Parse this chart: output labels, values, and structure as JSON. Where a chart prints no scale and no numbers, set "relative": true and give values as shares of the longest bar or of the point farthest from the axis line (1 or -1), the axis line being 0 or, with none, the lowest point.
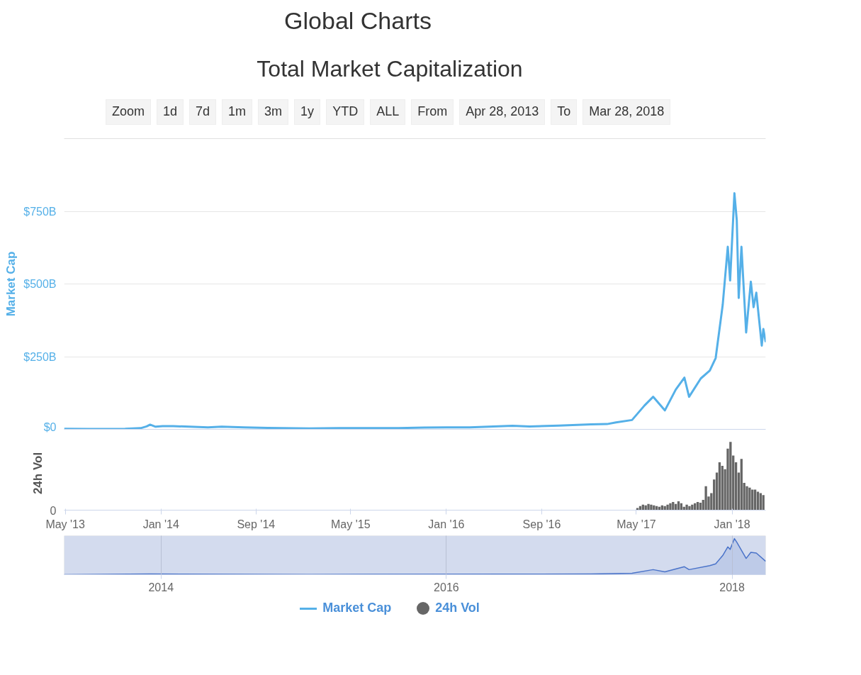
{
  "chart_data": [
    {
      "type": "line",
      "title": "Global Charts",
      "subtitle": "Total Market Capitalization",
      "ylabel": "Market Cap",
      "annotations": [
        "Zoom",
        "1d",
        "7d",
        "1m",
        "3m",
        "1y",
        "YTD",
        "ALL",
        "From",
        "Apr 28, 2013",
        "To",
        "Mar 28, 2018"
      ],
      "series": [
        {
          "name": "Market Cap",
          "color": "#55b0e8",
          "x": [
            "2013-04-28",
            "2013-07-01",
            "2013-10-01",
            "2013-11-10",
            "2013-11-25",
            "2013-12-04",
            "2013-12-18",
            "2014-01-05",
            "2014-02-01",
            "2014-03-15",
            "2014-05-01",
            "2014-06-05",
            "2014-08-01",
            "2014-10-01",
            "2015-01-15",
            "2015-04-01",
            "2015-07-01",
            "2015-09-01",
            "2015-11-05",
            "2016-01-01",
            "2016-03-01",
            "2016-06-18",
            "2016-08-01",
            "2016-10-15",
            "2017-01-05",
            "2017-02-15",
            "2017-03-10",
            "2017-04-20",
            "2017-05-22",
            "2017-06-13",
            "2017-07-13",
            "2017-08-10",
            "2017-09-01",
            "2017-09-13",
            "2017-10-13",
            "2017-11-05",
            "2017-11-20",
            "2017-12-08",
            "2017-12-21",
            "2017-12-27",
            "2018-01-07",
            "2018-01-13",
            "2018-01-18",
            "2018-01-25",
            "2018-02-06",
            "2018-02-18",
            "2018-02-25",
            "2018-03-04",
            "2018-03-18",
            "2018-03-22",
            "2018-03-28"
          ],
          "values": [
            2,
            1,
            2,
            4,
            10,
            16,
            9,
            11,
            11,
            9,
            7,
            9,
            7,
            5,
            3,
            4,
            4,
            4,
            6,
            7,
            7,
            12,
            10,
            13,
            17,
            18,
            24,
            32,
            82,
            112,
            65,
            137,
            178,
            112,
            175,
            202,
            245,
            428,
            628,
            512,
            812,
            720,
            452,
            628,
            333,
            508,
            420,
            470,
            288,
            345,
            300
          ]
        }
      ],
      "xlim": [
        "2013-04-28",
        "2018-03-28"
      ],
      "ylim": [
        0,
        1000
      ],
      "yticks": [
        {
          "value": 0,
          "label": "$0"
        },
        {
          "value": 250,
          "label": "$250B"
        },
        {
          "value": 500,
          "label": "$500B"
        },
        {
          "value": 750,
          "label": "$750B"
        }
      ],
      "tick_labels": "y",
      "grid": "y",
      "legend": "bottom"
    },
    {
      "type": "bar",
      "ylabel": "24h Vol",
      "relative": true,
      "annotations": [
        "0"
      ],
      "legend": "bottom",
      "xlim": [
        "2013-04-28",
        "2018-03-28"
      ],
      "xticks": [
        {
          "value": "2013-05-01",
          "label": "May '13"
        },
        {
          "value": "2014-01-01",
          "label": "Jan '14"
        },
        {
          "value": "2014-09-01",
          "label": "Sep '14"
        },
        {
          "value": "2015-05-01",
          "label": "May '15"
        },
        {
          "value": "2016-01-01",
          "label": "Jan '16"
        },
        {
          "value": "2016-09-01",
          "label": "Sep '16"
        },
        {
          "value": "2017-05-01",
          "label": "May '17"
        },
        {
          "value": "2018-01-01",
          "label": "Jan '18"
        }
      ],
      "series": [
        {
          "name": "24h Vol",
          "color": "#666666",
          "x": [
            "2017-05-04",
            "2017-05-11",
            "2017-05-18",
            "2017-05-25",
            "2017-06-01",
            "2017-06-08",
            "2017-06-15",
            "2017-06-22",
            "2017-06-29",
            "2017-07-06",
            "2017-07-13",
            "2017-07-20",
            "2017-07-27",
            "2017-08-03",
            "2017-08-10",
            "2017-08-17",
            "2017-08-24",
            "2017-08-31",
            "2017-09-07",
            "2017-09-14",
            "2017-09-21",
            "2017-09-28",
            "2017-10-05",
            "2017-10-12",
            "2017-10-19",
            "2017-10-26",
            "2017-11-02",
            "2017-11-09",
            "2017-11-16",
            "2017-11-23",
            "2017-11-30",
            "2017-12-07",
            "2017-12-14",
            "2017-12-21",
            "2017-12-28",
            "2018-01-04",
            "2018-01-11",
            "2018-01-18",
            "2018-01-25",
            "2018-02-01",
            "2018-02-08",
            "2018-02-15",
            "2018-02-22",
            "2018-03-01",
            "2018-03-08",
            "2018-03-15",
            "2018-03-22"
          ],
          "values": [
            0.03,
            0.06,
            0.08,
            0.07,
            0.09,
            0.08,
            0.07,
            0.06,
            0.05,
            0.07,
            0.06,
            0.08,
            0.1,
            0.12,
            0.09,
            0.13,
            0.1,
            0.05,
            0.08,
            0.06,
            0.08,
            0.1,
            0.12,
            0.11,
            0.15,
            0.35,
            0.2,
            0.25,
            0.45,
            0.55,
            0.7,
            0.65,
            0.6,
            0.9,
            1.0,
            0.8,
            0.7,
            0.55,
            0.75,
            0.4,
            0.35,
            0.33,
            0.3,
            0.3,
            0.27,
            0.25,
            0.22
          ]
        }
      ]
    },
    {
      "type": "area",
      "relative": true,
      "grid": "x",
      "xlim": [
        "2013-04-28",
        "2018-03-28"
      ],
      "xticks": [
        {
          "value": "2014-01-01",
          "label": "2014"
        },
        {
          "value": "2016-01-01",
          "label": "2016"
        },
        {
          "value": "2018-01-01",
          "label": "2018"
        }
      ],
      "bands": [
        {
          "axis": "x",
          "from": "2013-04-28",
          "to": "2018-03-28",
          "color": "#d3dbee"
        }
      ],
      "series": [
        {
          "color": "#4a73c9",
          "x": [
            "2013-04-28",
            "2013-12-04",
            "2015-01-15",
            "2016-06-18",
            "2017-01-05",
            "2017-04-20",
            "2017-06-13",
            "2017-07-13",
            "2017-09-01",
            "2017-09-13",
            "2017-11-05",
            "2017-11-20",
            "2017-12-08",
            "2017-12-21",
            "2017-12-27",
            "2018-01-07",
            "2018-01-13",
            "2018-02-06",
            "2018-02-18",
            "2018-03-04",
            "2018-03-28"
          ],
          "values": [
            0,
            0.02,
            0.005,
            0.015,
            0.02,
            0.04,
            0.14,
            0.08,
            0.22,
            0.14,
            0.25,
            0.3,
            0.53,
            0.77,
            0.7,
            1,
            0.9,
            0.45,
            0.62,
            0.6,
            0.37
          ]
        }
      ]
    }
  ]
}
